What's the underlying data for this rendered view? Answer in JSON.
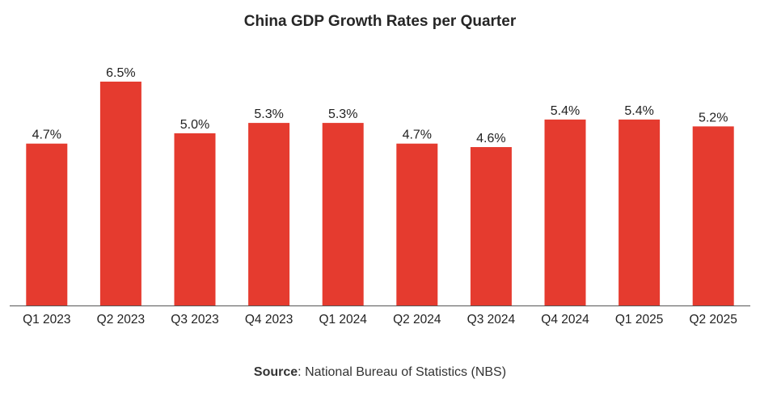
{
  "chart_data": {
    "type": "bar",
    "title": "China GDP Growth Rates per Quarter",
    "categories": [
      "Q1 2023",
      "Q2 2023",
      "Q3 2023",
      "Q4 2023",
      "Q1 2024",
      "Q2 2024",
      "Q3 2024",
      "Q4 2024",
      "Q1 2025",
      "Q2 2025"
    ],
    "values": [
      4.7,
      6.5,
      5.0,
      5.3,
      5.3,
      4.7,
      4.6,
      5.4,
      5.4,
      5.2
    ],
    "data_labels": [
      "4.7%",
      "6.5%",
      "5.0%",
      "5.3%",
      "5.3%",
      "4.7%",
      "4.6%",
      "5.4%",
      "5.4%",
      "5.2%"
    ],
    "ylim": [
      0,
      6.5
    ],
    "grid": false,
    "legend": "none",
    "bar_color": "#e53b2f",
    "axis_color": "#555555"
  },
  "footer": {
    "source_label": "Source",
    "source_text": ": National Bureau of Statistics (NBS)"
  }
}
